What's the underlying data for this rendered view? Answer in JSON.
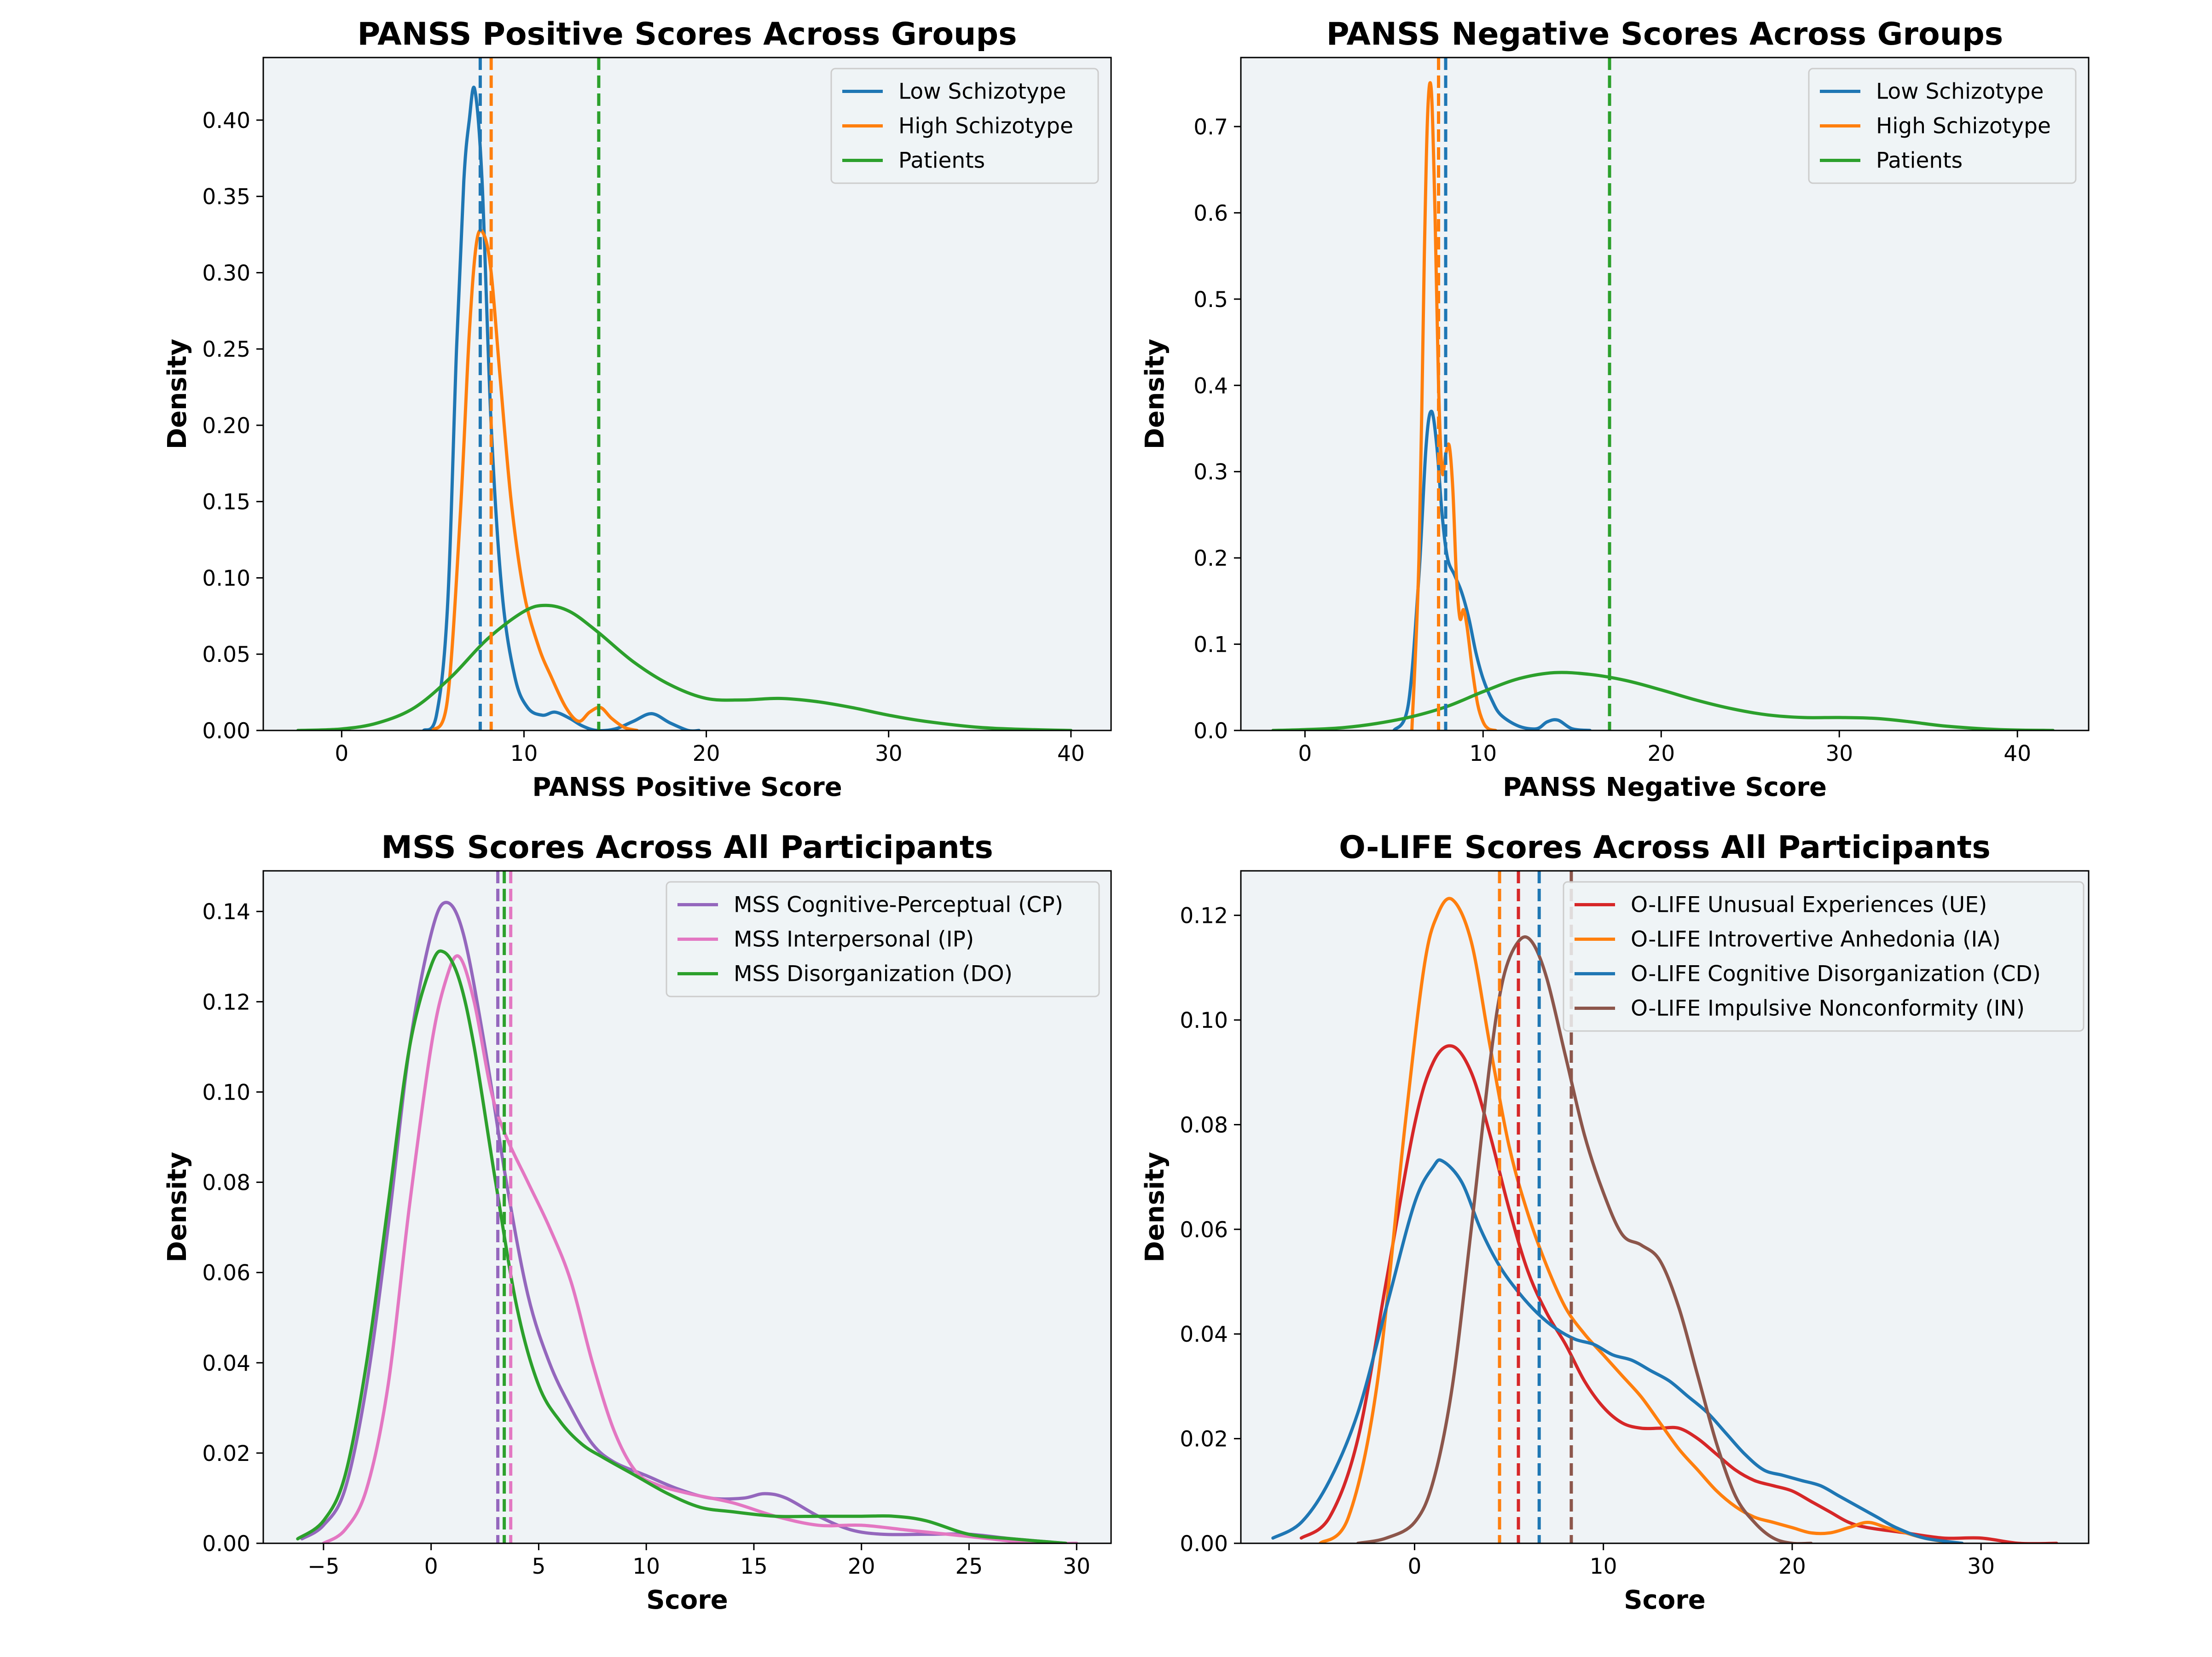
{
  "chart_data": [
    {
      "type": "kde-line",
      "title": "PANSS Positive Scores Across Groups",
      "xlabel": "PANSS Positive Score",
      "ylabel": "Density",
      "xlim": [
        -4.3,
        42.2
      ],
      "ylim": [
        0,
        0.441
      ],
      "xticks": [
        0,
        10,
        20,
        30,
        40
      ],
      "yticks": [
        0.0,
        0.05,
        0.1,
        0.15,
        0.2,
        0.25,
        0.3,
        0.35,
        0.4
      ],
      "legend_position": "top-right",
      "legend": [
        "Low Schizotype",
        "High Schizotype",
        "Patients"
      ],
      "colors": {
        "Low Schizotype": "#1f77b4",
        "High Schizotype": "#ff7f0e",
        "Patients": "#2ca02c"
      },
      "series": [
        {
          "name": "Low Schizotype",
          "color": "#1f77b4",
          "x": [
            4.5,
            5.2,
            5.8,
            6.3,
            6.7,
            7.0,
            7.3,
            7.7,
            8.2,
            8.8,
            9.5,
            10.2,
            11.0,
            11.7,
            12.5,
            13.2,
            14.0,
            15.0,
            16.0,
            17.0,
            18.0,
            19.0,
            19.6
          ],
          "y": [
            0.0,
            0.01,
            0.08,
            0.25,
            0.36,
            0.4,
            0.42,
            0.36,
            0.2,
            0.09,
            0.035,
            0.015,
            0.01,
            0.012,
            0.008,
            0.003,
            0.0,
            0.001,
            0.006,
            0.011,
            0.005,
            0.0,
            0.0
          ]
        },
        {
          "name": "High Schizotype",
          "color": "#ff7f0e",
          "x": [
            5.0,
            5.8,
            6.5,
            7.0,
            7.4,
            7.8,
            8.2,
            8.7,
            9.3,
            10.0,
            10.8,
            11.5,
            12.3,
            13.0,
            13.6,
            14.2,
            14.8,
            15.5,
            16.2
          ],
          "y": [
            0.0,
            0.02,
            0.14,
            0.26,
            0.32,
            0.325,
            0.3,
            0.23,
            0.15,
            0.09,
            0.055,
            0.035,
            0.015,
            0.006,
            0.012,
            0.015,
            0.008,
            0.002,
            0.0
          ]
        },
        {
          "name": "Patients",
          "color": "#2ca02c",
          "x": [
            -2.4,
            0.0,
            2.0,
            4.0,
            6.0,
            8.0,
            10.0,
            11.2,
            12.5,
            14.0,
            16.0,
            18.0,
            20.0,
            22.0,
            24.0,
            26.0,
            28.0,
            30.0,
            32.0,
            35.0,
            38.0,
            40.0
          ],
          "y": [
            0.0,
            0.001,
            0.005,
            0.015,
            0.035,
            0.06,
            0.078,
            0.082,
            0.078,
            0.065,
            0.045,
            0.03,
            0.021,
            0.02,
            0.021,
            0.019,
            0.015,
            0.01,
            0.006,
            0.002,
            0.0005,
            0.0
          ]
        }
      ],
      "mean_lines": [
        {
          "series": "Low Schizotype",
          "x": 7.6,
          "color": "#1f77b4"
        },
        {
          "series": "High Schizotype",
          "x": 8.2,
          "color": "#ff7f0e"
        },
        {
          "series": "Patients",
          "x": 14.1,
          "color": "#2ca02c"
        }
      ]
    },
    {
      "type": "kde-line",
      "title": "PANSS Negative Scores Across Groups",
      "xlabel": "PANSS Negative Score",
      "ylabel": "Density",
      "xlim": [
        -3.6,
        44.0
      ],
      "ylim": [
        0,
        0.78
      ],
      "xticks": [
        0,
        10,
        20,
        30,
        40
      ],
      "yticks": [
        0.0,
        0.1,
        0.2,
        0.3,
        0.4,
        0.5,
        0.6,
        0.7
      ],
      "legend_position": "top-right",
      "legend": [
        "Low Schizotype",
        "High Schizotype",
        "Patients"
      ],
      "colors": {
        "Low Schizotype": "#1f77b4",
        "High Schizotype": "#ff7f0e",
        "Patients": "#2ca02c"
      },
      "series": [
        {
          "name": "Low Schizotype",
          "color": "#1f77b4",
          "x": [
            5.0,
            5.8,
            6.4,
            6.8,
            7.1,
            7.4,
            7.7,
            8.0,
            8.4,
            8.8,
            9.2,
            9.6,
            10.0,
            10.5,
            11.0,
            12.0,
            13.0,
            13.6,
            14.2,
            15.0,
            16.0
          ],
          "y": [
            0.0,
            0.03,
            0.18,
            0.33,
            0.37,
            0.33,
            0.25,
            0.2,
            0.18,
            0.16,
            0.13,
            0.09,
            0.06,
            0.035,
            0.018,
            0.005,
            0.002,
            0.01,
            0.012,
            0.002,
            0.0
          ]
        },
        {
          "name": "High Schizotype",
          "color": "#ff7f0e",
          "x": [
            6.0,
            6.4,
            6.7,
            6.9,
            7.1,
            7.3,
            7.5,
            7.7,
            7.9,
            8.1,
            8.3,
            8.5,
            8.7,
            8.9,
            9.1,
            9.4,
            9.7,
            10.0,
            10.3,
            10.7
          ],
          "y": [
            0.0,
            0.2,
            0.55,
            0.72,
            0.74,
            0.6,
            0.4,
            0.3,
            0.32,
            0.33,
            0.28,
            0.18,
            0.13,
            0.14,
            0.12,
            0.07,
            0.03,
            0.01,
            0.002,
            0.0
          ]
        },
        {
          "name": "Patients",
          "color": "#2ca02c",
          "x": [
            -1.8,
            0.0,
            2.0,
            4.0,
            6.0,
            8.0,
            10.0,
            12.0,
            14.0,
            16.0,
            18.0,
            20.0,
            22.0,
            24.0,
            26.0,
            28.0,
            30.0,
            32.0,
            34.0,
            36.0,
            39.0,
            42.0
          ],
          "y": [
            0.0,
            0.001,
            0.003,
            0.008,
            0.016,
            0.028,
            0.045,
            0.06,
            0.067,
            0.065,
            0.058,
            0.047,
            0.035,
            0.025,
            0.018,
            0.015,
            0.015,
            0.014,
            0.01,
            0.005,
            0.001,
            0.0
          ]
        }
      ],
      "mean_lines": [
        {
          "series": "Low Schizotype",
          "x": 7.9,
          "color": "#1f77b4"
        },
        {
          "series": "High Schizotype",
          "x": 7.5,
          "color": "#ff7f0e"
        },
        {
          "series": "Patients",
          "x": 17.1,
          "color": "#2ca02c"
        }
      ]
    },
    {
      "type": "kde-line",
      "title": "MSS Scores Across All Participants",
      "xlabel": "Score",
      "ylabel": "Density",
      "xlim": [
        -7.8,
        31.6
      ],
      "ylim": [
        0,
        0.149
      ],
      "xticks": [
        -5,
        0,
        5,
        10,
        15,
        20,
        25,
        30
      ],
      "xtick_labels": [
        "−5",
        "0",
        "5",
        "10",
        "15",
        "20",
        "25",
        "30"
      ],
      "yticks": [
        0.0,
        0.02,
        0.04,
        0.06,
        0.08,
        0.1,
        0.12,
        0.14
      ],
      "legend_position": "top-right",
      "legend": [
        "MSS Cognitive-Perceptual (CP)",
        "MSS Interpersonal (IP)",
        "MSS Disorganization (DO)"
      ],
      "colors": {
        "MSS Cognitive-Perceptual (CP)": "#9467bd",
        "MSS Interpersonal (IP)": "#e377c2",
        "MSS Disorganization (DO)": "#2ca02c"
      },
      "series": [
        {
          "name": "MSS Cognitive-Perceptual (CP)",
          "color": "#9467bd",
          "x": [
            -6.0,
            -5.0,
            -4.0,
            -3.0,
            -2.0,
            -1.0,
            0.0,
            0.7,
            1.5,
            2.5,
            3.5,
            4.5,
            5.5,
            6.5,
            7.5,
            8.5,
            10.0,
            11.5,
            13.0,
            14.5,
            15.5,
            16.5,
            18.0,
            19.5,
            21.0,
            23.0,
            25.0,
            27.0,
            29.5
          ],
          "y": [
            0.001,
            0.004,
            0.012,
            0.035,
            0.07,
            0.11,
            0.135,
            0.142,
            0.135,
            0.11,
            0.08,
            0.055,
            0.04,
            0.03,
            0.022,
            0.018,
            0.015,
            0.012,
            0.01,
            0.01,
            0.011,
            0.01,
            0.006,
            0.003,
            0.002,
            0.002,
            0.002,
            0.001,
            0.0
          ]
        },
        {
          "name": "MSS Interpersonal (IP)",
          "color": "#e377c2",
          "x": [
            -5.0,
            -4.0,
            -3.0,
            -2.0,
            -1.0,
            0.0,
            0.7,
            1.3,
            2.0,
            2.8,
            3.5,
            4.5,
            5.5,
            6.5,
            7.5,
            8.5,
            9.5,
            10.5,
            12.0,
            14.0,
            16.0,
            18.0,
            20.0,
            22.0,
            24.0,
            26.0,
            28.0,
            30.0
          ],
          "y": [
            0.0,
            0.003,
            0.012,
            0.035,
            0.075,
            0.11,
            0.125,
            0.13,
            0.12,
            0.1,
            0.09,
            0.08,
            0.07,
            0.058,
            0.04,
            0.025,
            0.016,
            0.013,
            0.011,
            0.009,
            0.006,
            0.004,
            0.004,
            0.003,
            0.002,
            0.001,
            0.0,
            0.0
          ]
        },
        {
          "name": "MSS Disorganization (DO)",
          "color": "#2ca02c",
          "x": [
            -6.2,
            -5.0,
            -4.0,
            -3.0,
            -2.0,
            -1.0,
            0.0,
            0.6,
            1.3,
            2.0,
            3.0,
            4.0,
            5.0,
            6.0,
            7.0,
            8.0,
            9.5,
            11.0,
            12.5,
            14.0,
            16.0,
            18.0,
            20.0,
            21.5,
            23.0,
            25.0,
            27.0,
            29.5
          ],
          "y": [
            0.001,
            0.005,
            0.015,
            0.04,
            0.075,
            0.11,
            0.128,
            0.131,
            0.125,
            0.11,
            0.08,
            0.052,
            0.035,
            0.027,
            0.022,
            0.019,
            0.015,
            0.011,
            0.008,
            0.007,
            0.006,
            0.006,
            0.006,
            0.006,
            0.005,
            0.002,
            0.001,
            0.0
          ]
        }
      ],
      "mean_lines": [
        {
          "series": "MSS Cognitive-Perceptual (CP)",
          "x": 3.1,
          "color": "#9467bd"
        },
        {
          "series": "MSS Interpersonal (IP)",
          "x": 3.7,
          "color": "#e377c2"
        },
        {
          "series": "MSS Disorganization (DO)",
          "x": 3.4,
          "color": "#2ca02c"
        }
      ]
    },
    {
      "type": "kde-line",
      "title": "O-LIFE Scores Across All Participants",
      "xlabel": "Score",
      "ylabel": "Density",
      "xlim": [
        -9.2,
        35.7
      ],
      "ylim": [
        0,
        0.1285
      ],
      "xticks": [
        0,
        10,
        20,
        30
      ],
      "yticks": [
        0.0,
        0.02,
        0.04,
        0.06,
        0.08,
        0.1,
        0.12
      ],
      "legend_position": "top-right",
      "legend": [
        "O-LIFE Unusual Experiences (UE)",
        "O-LIFE Introvertive Anhedonia (IA)",
        "O-LIFE Cognitive Disorganization (CD)",
        "O-LIFE Impulsive Nonconformity (IN)"
      ],
      "colors": {
        "O-LIFE Unusual Experiences (UE)": "#d62728",
        "O-LIFE Introvertive Anhedonia (IA)": "#ff7f0e",
        "O-LIFE Cognitive Disorganization (CD)": "#1f77b4",
        "O-LIFE Impulsive Nonconformity (IN)": "#8c564b"
      },
      "series": [
        {
          "name": "O-LIFE Unusual Experiences (UE)",
          "color": "#d62728",
          "x": [
            -6.0,
            -4.5,
            -3.0,
            -1.5,
            0.0,
            1.0,
            2.0,
            3.0,
            4.0,
            5.0,
            6.0,
            7.0,
            8.0,
            9.0,
            10.0,
            11.0,
            12.0,
            13.0,
            14.0,
            15.0,
            16.0,
            17.0,
            18.0,
            19.0,
            20.0,
            21.0,
            22.0,
            23.0,
            24.0,
            26.0,
            28.0,
            30.0,
            32.0,
            34.0
          ],
          "y": [
            0.001,
            0.005,
            0.02,
            0.05,
            0.08,
            0.092,
            0.095,
            0.09,
            0.078,
            0.064,
            0.052,
            0.044,
            0.038,
            0.031,
            0.026,
            0.023,
            0.022,
            0.022,
            0.022,
            0.02,
            0.017,
            0.014,
            0.012,
            0.011,
            0.01,
            0.008,
            0.006,
            0.004,
            0.003,
            0.002,
            0.001,
            0.001,
            0.0,
            0.0
          ]
        },
        {
          "name": "O-LIFE Introvertive Anhedonia (IA)",
          "color": "#ff7f0e",
          "x": [
            -5.0,
            -3.5,
            -2.0,
            -0.5,
            0.5,
            1.2,
            2.0,
            3.0,
            4.0,
            5.0,
            6.0,
            7.0,
            8.0,
            9.0,
            10.0,
            11.0,
            12.0,
            13.0,
            14.0,
            15.0,
            16.0,
            17.0,
            18.0,
            19.0,
            20.0,
            21.0,
            22.0,
            23.0,
            24.0,
            25.0,
            26.0,
            27.0,
            28.5
          ],
          "y": [
            0.0,
            0.005,
            0.03,
            0.08,
            0.11,
            0.12,
            0.123,
            0.115,
            0.095,
            0.076,
            0.063,
            0.053,
            0.045,
            0.04,
            0.036,
            0.032,
            0.028,
            0.023,
            0.018,
            0.014,
            0.01,
            0.007,
            0.005,
            0.004,
            0.003,
            0.002,
            0.002,
            0.003,
            0.004,
            0.003,
            0.002,
            0.001,
            0.0
          ]
        },
        {
          "name": "O-LIFE Cognitive Disorganization (CD)",
          "color": "#1f77b4",
          "x": [
            -7.5,
            -6.0,
            -4.5,
            -3.0,
            -1.5,
            0.0,
            1.0,
            1.5,
            2.5,
            3.5,
            4.5,
            5.5,
            6.5,
            7.5,
            8.5,
            9.5,
            10.5,
            11.5,
            12.5,
            13.5,
            14.5,
            15.5,
            16.5,
            17.5,
            18.5,
            19.5,
            20.5,
            21.5,
            22.5,
            23.5,
            24.5,
            25.5,
            27.0,
            29.0
          ],
          "y": [
            0.001,
            0.004,
            0.012,
            0.025,
            0.045,
            0.065,
            0.072,
            0.073,
            0.069,
            0.06,
            0.053,
            0.048,
            0.044,
            0.041,
            0.039,
            0.038,
            0.036,
            0.035,
            0.033,
            0.031,
            0.028,
            0.025,
            0.021,
            0.017,
            0.014,
            0.013,
            0.012,
            0.011,
            0.009,
            0.007,
            0.005,
            0.003,
            0.001,
            0.0
          ]
        },
        {
          "name": "O-LIFE Impulsive Nonconformity (IN)",
          "color": "#8c564b",
          "x": [
            -3.0,
            -1.5,
            0.0,
            1.0,
            2.0,
            3.0,
            4.0,
            4.7,
            5.5,
            6.2,
            7.0,
            8.0,
            9.0,
            10.0,
            11.0,
            12.0,
            13.0,
            14.0,
            15.0,
            16.0,
            17.0,
            18.0,
            19.0,
            20.0,
            21.0
          ],
          "y": [
            0.0,
            0.001,
            0.004,
            0.012,
            0.03,
            0.06,
            0.092,
            0.108,
            0.115,
            0.115,
            0.108,
            0.093,
            0.078,
            0.067,
            0.059,
            0.057,
            0.054,
            0.045,
            0.032,
            0.019,
            0.009,
            0.004,
            0.001,
            0.0,
            0.0
          ]
        }
      ],
      "mean_lines": [
        {
          "series": "O-LIFE Unusual Experiences (UE)",
          "x": 5.5,
          "color": "#d62728"
        },
        {
          "series": "O-LIFE Introvertive Anhedonia (IA)",
          "x": 4.5,
          "color": "#ff7f0e"
        },
        {
          "series": "O-LIFE Cognitive Disorganization (CD)",
          "x": 6.6,
          "color": "#1f77b4"
        },
        {
          "series": "O-LIFE Impulsive Nonconformity (IN)",
          "x": 8.3,
          "color": "#8c564b"
        }
      ]
    }
  ]
}
